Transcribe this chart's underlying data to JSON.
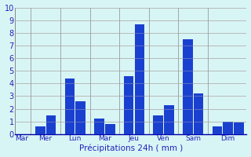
{
  "groups": [
    {
      "label": "Mar",
      "values": [
        0.0
      ]
    },
    {
      "label": "Mer",
      "values": [
        0.6,
        1.5
      ]
    },
    {
      "label": "Lun",
      "values": [
        4.4,
        2.6
      ]
    },
    {
      "label": "Mar",
      "values": [
        1.2,
        0.8
      ]
    },
    {
      "label": "Jeu",
      "values": [
        4.6,
        8.7
      ]
    },
    {
      "label": "Ven",
      "values": [
        1.5,
        2.3
      ]
    },
    {
      "label": "Sam",
      "values": [
        7.5,
        3.2
      ]
    },
    {
      "label": "Dim",
      "values": [
        0.6,
        1.0,
        0.9
      ]
    }
  ],
  "bar_color": "#1a40d0",
  "bg_color": "#d8f5f5",
  "grid_color": "#b0b0b0",
  "text_color": "#2222bb",
  "xlabel": "Précipitations 24h ( mm )",
  "ylim": [
    0,
    10
  ],
  "yticks": [
    0,
    1,
    2,
    3,
    4,
    5,
    6,
    7,
    8,
    9,
    10
  ]
}
